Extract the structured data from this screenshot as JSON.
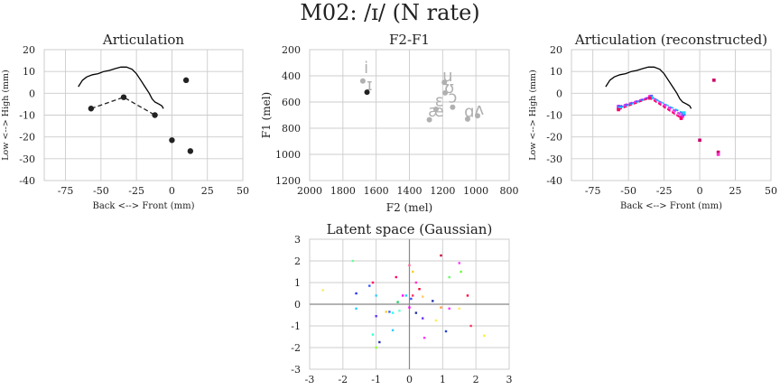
{
  "figure": {
    "title": "M02: /ɪ/ (N rate)"
  },
  "chart_data": [
    {
      "id": "articulation",
      "type": "line",
      "title": "Articulation",
      "xlabel": "Back <--> Front (mm)",
      "ylabel": "Low <--> High (mm)",
      "xlim": [
        -90,
        50
      ],
      "ylim": [
        -40,
        20
      ],
      "xticks": [
        -75,
        -50,
        -25,
        0,
        25,
        50
      ],
      "yticks": [
        -40,
        -30,
        -20,
        -10,
        0,
        10,
        20
      ],
      "grid": true,
      "palate": [
        [
          -66,
          3
        ],
        [
          -63,
          6
        ],
        [
          -60,
          7.5
        ],
        [
          -56,
          8.5
        ],
        [
          -52,
          9
        ],
        [
          -48,
          10
        ],
        [
          -44,
          10.5
        ],
        [
          -40,
          11.3
        ],
        [
          -36,
          12
        ],
        [
          -32,
          12
        ],
        [
          -28,
          11
        ],
        [
          -25,
          9
        ],
        [
          -22,
          6
        ],
        [
          -19,
          3
        ],
        [
          -16,
          0
        ],
        [
          -14,
          -2.5
        ],
        [
          -12,
          -4
        ],
        [
          -9,
          -5
        ],
        [
          -7,
          -5.8
        ],
        [
          -6,
          -7
        ]
      ],
      "tongue": [
        [
          -57,
          -7
        ],
        [
          -34,
          -1.8
        ],
        [
          -12,
          -10
        ]
      ],
      "points": [
        [
          -57,
          -7
        ],
        [
          -34,
          -1.8
        ],
        [
          -12,
          -10
        ],
        [
          10,
          6
        ],
        [
          0,
          -21.5
        ],
        [
          13,
          -26.5
        ]
      ]
    },
    {
      "id": "formants",
      "type": "scatter",
      "title": "F2-F1",
      "xlabel": "F2 (mel)",
      "ylabel": "F1 (mel)",
      "xlim": [
        2000,
        800
      ],
      "ylim": [
        1200,
        200
      ],
      "xticks": [
        2000,
        1800,
        1600,
        1400,
        1200,
        1000,
        800
      ],
      "yticks": [
        200,
        400,
        600,
        800,
        1000,
        1200
      ],
      "grid": true,
      "vowels": [
        {
          "symbol": "i",
          "f2": 1660,
          "f1": 380
        },
        {
          "symbol": "ɪ",
          "f2": 1640,
          "f1": 510
        },
        {
          "symbol": "u",
          "f2": 1170,
          "f1": 440
        },
        {
          "symbol": "ʊ",
          "f2": 1160,
          "f1": 530
        },
        {
          "symbol": "ɛ",
          "f2": 1220,
          "f1": 630
        },
        {
          "symbol": "ɔ",
          "f2": 1140,
          "f1": 605
        },
        {
          "symbol": "æ",
          "f2": 1240,
          "f1": 710
        },
        {
          "symbol": "ɑ",
          "f2": 1040,
          "f1": 715
        },
        {
          "symbol": "ʌ",
          "f2": 980,
          "f1": 695
        }
      ],
      "points": [
        {
          "f2": 1680,
          "f1": 440,
          "color": "#b0b0b0"
        },
        {
          "f2": 1655,
          "f1": 525,
          "color": "#222222"
        },
        {
          "f2": 1190,
          "f1": 450,
          "color": "#b0b0b0"
        },
        {
          "f2": 1185,
          "f1": 530,
          "color": "#b0b0b0"
        },
        {
          "f2": 1240,
          "f1": 655,
          "color": "#b0b0b0"
        },
        {
          "f2": 1140,
          "f1": 640,
          "color": "#b0b0b0"
        },
        {
          "f2": 1280,
          "f1": 735,
          "color": "#b0b0b0"
        },
        {
          "f2": 1050,
          "f1": 730,
          "color": "#b0b0b0"
        },
        {
          "f2": 990,
          "f1": 705,
          "color": "#b0b0b0"
        }
      ]
    },
    {
      "id": "articulation-reconstructed",
      "type": "line",
      "title": "Articulation (reconstructed)",
      "xlabel": "Back <--> Front (mm)",
      "ylabel": "Low <--> High (mm)",
      "xlim": [
        -90,
        50
      ],
      "ylim": [
        -40,
        20
      ],
      "xticks": [
        -75,
        -50,
        -25,
        0,
        25,
        50
      ],
      "yticks": [
        -40,
        -30,
        -20,
        -10,
        0,
        10,
        20
      ],
      "grid": true,
      "palate": [
        [
          -66,
          3
        ],
        [
          -63,
          6
        ],
        [
          -60,
          7.5
        ],
        [
          -56,
          8.5
        ],
        [
          -52,
          9
        ],
        [
          -48,
          10
        ],
        [
          -44,
          10.5
        ],
        [
          -40,
          11.3
        ],
        [
          -36,
          12
        ],
        [
          -32,
          12
        ],
        [
          -28,
          11
        ],
        [
          -25,
          9
        ],
        [
          -22,
          6
        ],
        [
          -19,
          3
        ],
        [
          -16,
          0
        ],
        [
          -14,
          -2.5
        ],
        [
          -12,
          -4
        ],
        [
          -9,
          -5
        ],
        [
          -7,
          -5.8
        ],
        [
          -6,
          -7
        ]
      ],
      "tongue_lines": [
        {
          "color": "#ff00aa",
          "points": [
            [
              -57,
              -7
            ],
            [
              -35,
              -1.8
            ],
            [
              -13,
              -11
            ]
          ]
        },
        {
          "color": "#ff33dd",
          "points": [
            [
              -57,
              -6.5
            ],
            [
              -35,
              -1.5
            ],
            [
              -12,
              -10.5
            ]
          ]
        },
        {
          "color": "#cc33ff",
          "points": [
            [
              -57,
              -6
            ],
            [
              -34,
              -1.4
            ],
            [
              -12,
              -10
            ]
          ]
        },
        {
          "color": "#3355ff",
          "points": [
            [
              -56,
              -6.3
            ],
            [
              -34,
              -1.6
            ],
            [
              -11,
              -9.5
            ]
          ]
        },
        {
          "color": "#22ccff",
          "points": [
            [
              -56,
              -6.8
            ],
            [
              -34,
              -2
            ],
            [
              -11,
              -9
            ]
          ]
        },
        {
          "color": "#ff0066",
          "points": [
            [
              -57,
              -7.5
            ],
            [
              -35,
              -2.2
            ],
            [
              -13,
              -11.5
            ]
          ]
        }
      ],
      "points": [
        {
          "x": 10,
          "y": 6,
          "color": "#cc0066"
        },
        {
          "x": 0,
          "y": -21.5,
          "color": "#cc0066"
        },
        {
          "x": 13,
          "y": -27,
          "color": "#cc0066"
        },
        {
          "x": 13,
          "y": -28,
          "color": "#ff33cc"
        }
      ]
    },
    {
      "id": "latent",
      "type": "scatter",
      "title": "Latent space (Gaussian)",
      "xlim": [
        -3,
        3
      ],
      "ylim": [
        -3,
        3
      ],
      "xticks": [
        -3,
        -2,
        -1,
        0,
        1,
        2,
        3
      ],
      "yticks": [
        -3,
        -2,
        -1,
        0,
        1,
        2,
        3
      ],
      "grid": true,
      "zero_lines": true,
      "points": [
        {
          "x": -1.7,
          "y": 2.0,
          "color": "#66ff99"
        },
        {
          "x": -1.6,
          "y": 0.5,
          "color": "#2233ff"
        },
        {
          "x": -1.6,
          "y": -0.2,
          "color": "#22ccff"
        },
        {
          "x": -2.6,
          "y": 0.65,
          "color": "#ffee55"
        },
        {
          "x": -1.1,
          "y": 1.0,
          "color": "#ff0066"
        },
        {
          "x": -1.2,
          "y": 0.85,
          "color": "#3355ff"
        },
        {
          "x": -1.0,
          "y": 0.4,
          "color": "#33ccff"
        },
        {
          "x": -1.0,
          "y": -0.55,
          "color": "#6633ff"
        },
        {
          "x": -1.1,
          "y": -1.4,
          "color": "#33ffcc"
        },
        {
          "x": -0.9,
          "y": -1.75,
          "color": "#2233aa"
        },
        {
          "x": -1.0,
          "y": -2.0,
          "color": "#99ff33"
        },
        {
          "x": -0.7,
          "y": -0.35,
          "color": "#ffcc33"
        },
        {
          "x": -0.6,
          "y": -0.35,
          "color": "#3366ff"
        },
        {
          "x": -0.5,
          "y": -1.2,
          "color": "#33ccff"
        },
        {
          "x": -0.5,
          "y": -0.4,
          "color": "#33ffee"
        },
        {
          "x": -0.4,
          "y": 1.25,
          "color": "#ff0066"
        },
        {
          "x": -0.35,
          "y": 0.1,
          "color": "#22cc66"
        },
        {
          "x": -0.3,
          "y": -0.3,
          "color": "#66ffcc"
        },
        {
          "x": -0.2,
          "y": 0.4,
          "color": "#ff00ff"
        },
        {
          "x": -0.1,
          "y": 0.4,
          "color": "#22ccff"
        },
        {
          "x": 0.0,
          "y": 1.8,
          "color": "#ff6699"
        },
        {
          "x": 0.1,
          "y": 1.5,
          "color": "#ffcc33"
        },
        {
          "x": 0.1,
          "y": 0.4,
          "color": "#ff3366"
        },
        {
          "x": 0.05,
          "y": 0.25,
          "color": "#3355ff"
        },
        {
          "x": 0.0,
          "y": -0.15,
          "color": "#ff00ff"
        },
        {
          "x": 0.2,
          "y": 1.0,
          "color": "#ff33cc"
        },
        {
          "x": 0.2,
          "y": -0.4,
          "color": "#2233aa"
        },
        {
          "x": 0.3,
          "y": 0.7,
          "color": "#ff0033"
        },
        {
          "x": 0.4,
          "y": 0.35,
          "color": "#ffcc66"
        },
        {
          "x": 0.4,
          "y": -0.65,
          "color": "#6633ff"
        },
        {
          "x": 0.45,
          "y": -1.55,
          "color": "#ff33ff"
        },
        {
          "x": 0.7,
          "y": 0.15,
          "color": "#2233aa"
        },
        {
          "x": 0.8,
          "y": -0.75,
          "color": "#ffee55"
        },
        {
          "x": 0.95,
          "y": 2.25,
          "color": "#cc0033"
        },
        {
          "x": 0.95,
          "y": -0.15,
          "color": "#ff9933"
        },
        {
          "x": 1.1,
          "y": -1.25,
          "color": "#2244cc"
        },
        {
          "x": 1.2,
          "y": -0.2,
          "color": "#ff33ff"
        },
        {
          "x": 1.2,
          "y": 1.25,
          "color": "#66ff66"
        },
        {
          "x": 1.5,
          "y": 1.9,
          "color": "#ff33ff"
        },
        {
          "x": 1.55,
          "y": 1.5,
          "color": "#66ff33"
        },
        {
          "x": 1.5,
          "y": -0.2,
          "color": "#ffee55"
        },
        {
          "x": 1.75,
          "y": 0.4,
          "color": "#ff0033"
        },
        {
          "x": 1.85,
          "y": -1.0,
          "color": "#ff3366"
        },
        {
          "x": 2.25,
          "y": -1.45,
          "color": "#ffee33"
        }
      ]
    }
  ]
}
